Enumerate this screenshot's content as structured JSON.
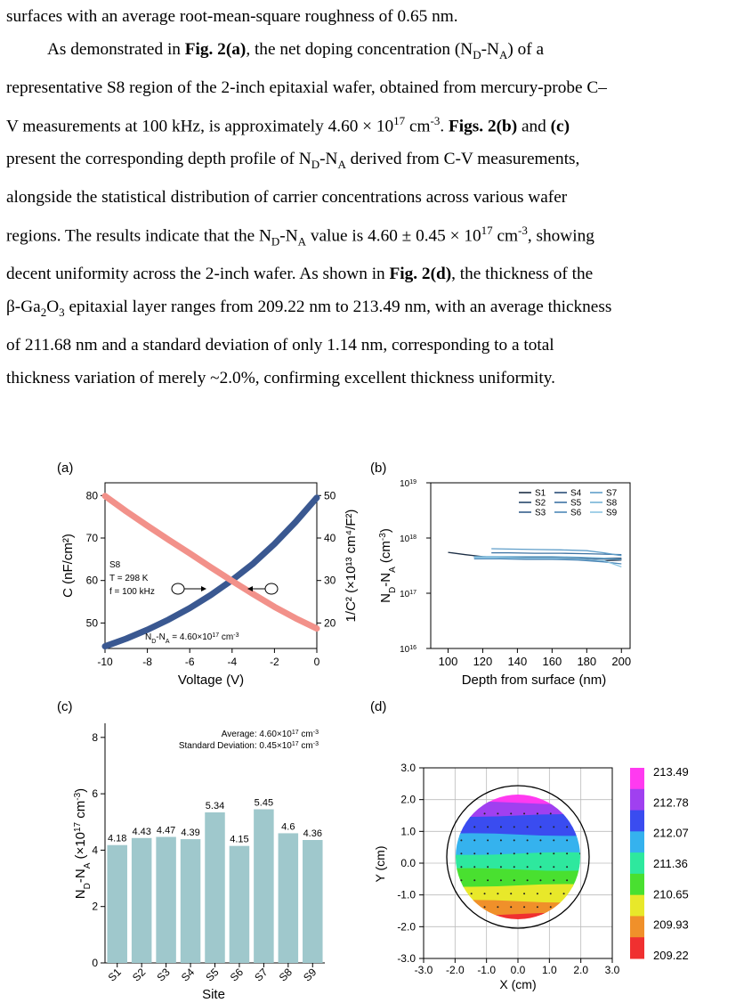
{
  "text": {
    "l0": "surfaces with an average root-mean-square roughness of 0.65 nm.",
    "l1a": "As demonstrated in ",
    "fig2a": "Fig. 2(a)",
    "l1b": ", the net doping concentration (N",
    "sD": "D",
    "dash": "-N",
    "sA": "A",
    "l1c": ") of a",
    "l2": "representative S8 region of the 2-inch epitaxial wafer, obtained from mercury-probe C–",
    "l3a": "V measurements at 100 kHz, is approximately 4.60 × 10",
    "e17": "17",
    "cm": " cm",
    "em3": "-3",
    "dot": ". ",
    "figs2b": "Figs. 2(b)",
    "and": " and ",
    "figc": "(c)",
    "l4a": "present the corresponding depth profile of N",
    "l4b": " derived from C-V measurements,",
    "l5": "alongside the statistical distribution of carrier concentrations across various wafer",
    "l6a": "regions. The results indicate that the N",
    "l6b": " value is 4.60 ± 0.45 × 10",
    "l6c": ", showing",
    "l7a": "decent uniformity across the 2-inch wafer. As shown in ",
    "fig2d": "Fig. 2(d)",
    "l7b": ", the thickness of the",
    "l8a": "β-Ga",
    "s2": "2",
    "O": "O",
    "s3": "3",
    "l8b": " epitaxial layer ranges from 209.22 nm to 213.49 nm, with an average thickness",
    "l9": "of 211.68 nm and a standard deviation of only 1.14 nm, corresponding to a total",
    "l10": "thickness variation of merely ~2.0%, confirming excellent thickness uniformity."
  },
  "colors": {
    "blue": "#3a5891",
    "red": "#f2918a",
    "bar": "#9fc8cc",
    "s1": "#1c2e45",
    "s2": "#27476b",
    "s3": "#355f8c",
    "s4": "#2a4f78",
    "s5": "#3d73a3",
    "s6": "#4d88b8",
    "s7": "#5f9ec9",
    "s8": "#74b2d6",
    "s9": "#8cc5e3"
  },
  "panels": {
    "a": {
      "label": "(a)",
      "chart_data": {
        "type": "line",
        "xlabel": "Voltage (V)",
        "ylabel": "C (nF/cm²)",
        "y2label": "1/C² (×10¹³ cm⁴/F²)",
        "xlim": [
          -10,
          0
        ],
        "ylim": [
          44,
          83
        ],
        "y2lim": [
          14,
          53
        ],
        "xticks": [
          "-10",
          "-8",
          "-6",
          "-4",
          "-2",
          "0"
        ],
        "yticks": [
          "50",
          "60",
          "70",
          "80"
        ],
        "y2ticks": [
          "20",
          "30",
          "40",
          "50"
        ],
        "annotation": [
          "S8",
          "T = 298 K",
          "f = 100 kHz"
        ],
        "note": "N_D-N_A = 4.60×10^17 cm^-3",
        "series": [
          {
            "axis": "left",
            "x": [
              -10,
              -9,
              -8,
              -7,
              -6,
              -5,
              -4,
              -3,
              -2,
              -1,
              0
            ],
            "values": [
              44.5,
              46.3,
              48.4,
              50.8,
              53.5,
              56.6,
              60.1,
              64.0,
              68.6,
              73.8,
              79.5
            ]
          },
          {
            "axis": "right",
            "x": [
              -10,
              -9,
              -8,
              -7,
              -6,
              -5,
              -4,
              -3,
              -2,
              -1,
              0
            ],
            "values": [
              49.9,
              46.3,
              42.9,
              39.6,
              36.4,
              33.1,
              29.9,
              26.8,
              23.8,
              21.1,
              18.7
            ]
          }
        ]
      }
    },
    "b": {
      "label": "(b)",
      "chart_data": {
        "type": "line",
        "xlabel": "Depth from surface (nm)",
        "ylabel": "N_D-N_A (cm^-3)",
        "xlim": [
          90,
          205
        ],
        "ylim_log": [
          16,
          19
        ],
        "xticks": [
          "100",
          "120",
          "140",
          "160",
          "180",
          "200"
        ],
        "yticks": [
          "16",
          "17",
          "18",
          "19"
        ],
        "legend": [
          "S1",
          "S2",
          "S3",
          "S4",
          "S5",
          "S6",
          "S7",
          "S8",
          "S9"
        ],
        "series": [
          {
            "name": "S1",
            "x": [
              100,
              110,
              120,
              130,
              140,
              150,
              160,
              170,
              180,
              190,
              200
            ],
            "values": [
              5.5e+17,
              5e+17,
              4.6e+17,
              4.4e+17,
              4.3e+17,
              4.2e+17,
              4.2e+17,
              4.1e+17,
              4e+17,
              3.9e+17,
              4e+17
            ]
          },
          {
            "name": "S2",
            "x": [
              115,
              130,
              145,
              160,
              175,
              190,
              200
            ],
            "values": [
              4.6e+17,
              4.5e+17,
              4.5e+17,
              4.4e+17,
              4.4e+17,
              4.3e+17,
              4.3e+17
            ]
          },
          {
            "name": "S3",
            "x": [
              115,
              130,
              145,
              160,
              175,
              190,
              200
            ],
            "values": [
              4.5e+17,
              4.5e+17,
              4.4e+17,
              4.4e+17,
              4.3e+17,
              4.2e+17,
              4.1e+17
            ]
          },
          {
            "name": "S4",
            "x": [
              115,
              130,
              145,
              160,
              175,
              190,
              200
            ],
            "values": [
              4.5e+17,
              4.4e+17,
              4.4e+17,
              4.4e+17,
              4.3e+17,
              4.2e+17,
              4.2e+17
            ]
          },
          {
            "name": "S5",
            "x": [
              125,
              135,
              150,
              165,
              180,
              190,
              200
            ],
            "values": [
              5.4e+17,
              5.4e+17,
              5.3e+17,
              5.3e+17,
              5.2e+17,
              5.1e+17,
              5e+17
            ]
          },
          {
            "name": "S6",
            "x": [
              115,
              130,
              145,
              160,
              175,
              190,
              200
            ],
            "values": [
              4.2e+17,
              4.2e+17,
              4.1e+17,
              4.1e+17,
              4e+17,
              3.7e+17,
              3.4e+17
            ]
          },
          {
            "name": "S7",
            "x": [
              125,
              135,
              150,
              165,
              180,
              190,
              200
            ],
            "values": [
              6.4e+17,
              6.3e+17,
              6.2e+17,
              6.1e+17,
              5.9e+17,
              5.4e+17,
              4.8e+17
            ]
          },
          {
            "name": "S8",
            "x": [
              115,
              130,
              145,
              160,
              175,
              190,
              200
            ],
            "values": [
              4.6e+17,
              4.6e+17,
              4.6e+17,
              4.6e+17,
              4.5e+17,
              4.3e+17,
              4.1e+17
            ]
          },
          {
            "name": "S9",
            "x": [
              115,
              130,
              145,
              160,
              175,
              190,
              200
            ],
            "values": [
              4.4e+17,
              4.4e+17,
              4.3e+17,
              4.3e+17,
              4.2e+17,
              3.9e+17,
              3e+17
            ]
          }
        ]
      }
    },
    "c": {
      "label": "(c)",
      "chart_data": {
        "type": "bar",
        "xlabel": "Site",
        "ylabel": "N_D-N_A (×10^17 cm^-3)",
        "ylim": [
          0,
          8.5
        ],
        "yticks": [
          "0",
          "2",
          "4",
          "6",
          "8"
        ],
        "categories": [
          "S1",
          "S2",
          "S3",
          "S4",
          "S5",
          "S6",
          "S7",
          "S8",
          "S9"
        ],
        "values": [
          4.18,
          4.43,
          4.47,
          4.39,
          5.34,
          4.15,
          5.45,
          4.6,
          4.36
        ],
        "labels": [
          "4.18",
          "4.43",
          "4.47",
          "4.39",
          "5.34",
          "4.15",
          "5.45",
          "4.6",
          "4.36"
        ],
        "average": "Average: 4.60×10^17 cm^-3",
        "std": "Standard Deviation: 0.45×10^17 cm^-3"
      }
    },
    "d": {
      "label": "(d)",
      "chart_data": {
        "type": "heatmap",
        "xlabel": "X (cm)",
        "ylabel": "Y (cm)",
        "xlim": [
          -3,
          3
        ],
        "ylim": [
          -3,
          3
        ],
        "xticks": [
          "-3.0",
          "-2.0",
          "-1.0",
          "0.0",
          "1.0",
          "2.0",
          "3.0"
        ],
        "yticks": [
          "3.0",
          "2.0",
          "1.0",
          "0.0",
          "-1.0",
          "-2.0",
          "-3.0"
        ],
        "colorbar": [
          "213.49",
          "212.78",
          "212.07",
          "211.36",
          "210.65",
          "209.93",
          "209.22"
        ],
        "colorbar_colors": [
          "#ff3af0",
          "#a040f0",
          "#3a4cf0",
          "#35b2ee",
          "#2ee89e",
          "#49e030",
          "#e8e82a",
          "#f0902a",
          "#f03030"
        ],
        "band_edges_y": [
          1.9,
          1.5,
          0.9,
          0.3,
          -0.2,
          -0.7,
          -1.2,
          -1.6,
          -1.9
        ],
        "range": [
          209.22,
          213.49
        ]
      }
    }
  }
}
